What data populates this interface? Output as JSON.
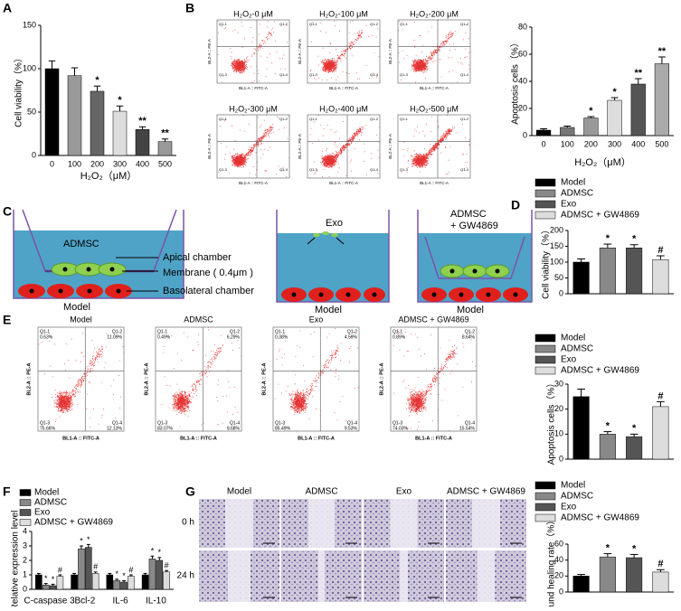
{
  "panel_labels": [
    "A",
    "B",
    "C",
    "D",
    "E",
    "F",
    "G"
  ],
  "chart_data": [
    {
      "type": "bar",
      "categories": [
        "0",
        "100",
        "200",
        "300",
        "400",
        "500"
      ],
      "values": [
        100,
        92,
        74,
        51,
        30,
        16
      ],
      "errors": [
        9,
        9,
        6,
        6,
        3,
        3
      ],
      "markers": [
        null,
        null,
        "*",
        "*",
        "**",
        "**"
      ],
      "colors": [
        "#000000",
        "#999999",
        "#666666",
        "#dddddd",
        "#444444",
        "#999999"
      ],
      "ylim": [
        0,
        150
      ],
      "yticks": [
        0,
        50,
        100,
        150
      ],
      "y_label": "Cell viability（%）",
      "x_label": "H₂O₂（μM）",
      "legend": false
    },
    {
      "type": "bar",
      "categories": [
        "0",
        "100",
        "200",
        "300",
        "400",
        "500"
      ],
      "values": [
        4,
        6,
        13,
        26,
        38,
        53
      ],
      "errors": [
        1,
        1,
        1,
        2,
        4,
        5
      ],
      "markers": [
        null,
        null,
        "*",
        "*",
        "**",
        "**"
      ],
      "colors": [
        "#000000",
        "#777777",
        "#999999",
        "#dddddd",
        "#555555",
        "#aaaaaa"
      ],
      "ylim": [
        0,
        80
      ],
      "yticks": [
        0,
        20,
        40,
        60,
        80
      ],
      "y_label": "Apoptosis cells（%）",
      "x_label": "H₂O₂（μM）",
      "legend": false
    },
    {
      "type": "bar",
      "categories": [
        "Model",
        "ADMSC",
        "Exo",
        "ADMSC + GW4869"
      ],
      "values": [
        100,
        145,
        145,
        108
      ],
      "errors": [
        10,
        12,
        10,
        12
      ],
      "markers": [
        null,
        "*",
        "*",
        "#"
      ],
      "colors": [
        "#000000",
        "#888888",
        "#555555",
        "#dddddd"
      ],
      "ylim": [
        0,
        200
      ],
      "yticks": [
        0,
        50,
        100,
        150,
        200
      ],
      "y_label": "Cell viability（%）",
      "legend": true
    },
    {
      "type": "bar",
      "categories": [
        "Model",
        "ADMSC",
        "Exo",
        "ADMSC + GW4869"
      ],
      "values": [
        25,
        10,
        9,
        21
      ],
      "errors": [
        3,
        1,
        1,
        2
      ],
      "markers": [
        null,
        "*",
        "*",
        "#"
      ],
      "colors": [
        "#000000",
        "#888888",
        "#555555",
        "#dddddd"
      ],
      "ylim": [
        0,
        30
      ],
      "yticks": [
        0,
        10,
        20,
        30
      ],
      "y_label": "Apoptosis cells（%）",
      "legend": true
    },
    {
      "type": "grouped",
      "categories": [
        "C-caspase 3",
        "Bcl-2",
        "IL-6",
        "IL-10"
      ],
      "series": [
        {
          "name": "Model",
          "color": "#000000",
          "values": [
            1,
            1,
            1,
            1
          ],
          "errors": [
            0.1,
            0.1,
            0.1,
            0.1
          ],
          "markers": [
            null,
            null,
            null,
            null
          ]
        },
        {
          "name": "ADMSC",
          "color": "#888888",
          "values": [
            0.3,
            2.8,
            0.6,
            2.1
          ],
          "errors": [
            0.1,
            0.2,
            0.1,
            0.2
          ],
          "markers": [
            "*",
            "*",
            "*",
            "*"
          ]
        },
        {
          "name": "Exo",
          "color": "#555555",
          "values": [
            0.25,
            2.9,
            0.5,
            2.0
          ],
          "errors": [
            0.1,
            0.2,
            0.1,
            0.2
          ],
          "markers": [
            "*",
            "*",
            "*",
            "*"
          ]
        },
        {
          "name": "ADMSC + GW4869",
          "color": "#dddddd",
          "values": [
            0.9,
            1.1,
            0.9,
            1.2
          ],
          "errors": [
            0.1,
            0.1,
            0.1,
            0.1
          ],
          "markers": [
            "#",
            "#",
            "#",
            "#"
          ]
        }
      ],
      "ylim": [
        0,
        4
      ],
      "yticks": [
        0,
        1,
        2,
        3,
        4
      ],
      "y_label": "Relative expression level",
      "legend": true
    },
    {
      "type": "bar",
      "categories": [
        "Model",
        "ADMSC",
        "Exo",
        "ADMSC + GW4869"
      ],
      "values": [
        20,
        44,
        43,
        25
      ],
      "errors": [
        2,
        4,
        4,
        3
      ],
      "markers": [
        null,
        "*",
        "*",
        "#"
      ],
      "colors": [
        "#000000",
        "#888888",
        "#555555",
        "#dddddd"
      ],
      "ylim": [
        0,
        60
      ],
      "yticks": [
        0,
        20,
        40,
        60
      ],
      "y_label": "Wound healing rate（%）",
      "legend": true
    }
  ],
  "flow_b": {
    "x_label": "BL1-A :: FITC-A",
    "y_label": "BL2-A :: PE-A",
    "quadrant_names": [
      "Q1-1",
      "Q1-2",
      "Q1-3",
      "Q1-4"
    ],
    "plots": [
      {
        "title": "H₂O₂-0 μM"
      },
      {
        "title": "H₂O₂-100 μM"
      },
      {
        "title": "H₂O₂-200 μM"
      },
      {
        "title": "H₂O₂-300 μM"
      },
      {
        "title": "H₂O₂-400 μM"
      },
      {
        "title": "H₂O₂-500 μM"
      }
    ]
  },
  "diagram": {
    "left_cell": "ADMSC",
    "apical": "Apical chamber",
    "membrane": "Membrane ( 0.4μm )",
    "basolateral": "Basolateral chamber",
    "left_model": "Model",
    "exo": "Exo",
    "mid_model": "Model",
    "right_cell_1": "ADMSC",
    "right_cell_2": "+ GW4869",
    "right_model": "Model"
  },
  "flow_e": {
    "x_label": "BL1-A :: FITC-A",
    "y_label": "BL2-A :: PE-A",
    "quadrant_names": [
      "Q1-1",
      "Q1-2",
      "Q1-3",
      "Q1-4"
    ],
    "plots": [
      {
        "title": "Model",
        "quadrants": [
          "0.63%",
          "11.09%",
          "75.66%",
          "12.13%"
        ]
      },
      {
        "title": "ADMSC",
        "quadrants": [
          "0.49%",
          "6.29%",
          "83.07%",
          "9.68%"
        ]
      },
      {
        "title": "Exo",
        "quadrants": [
          "0.38%",
          "4.59%",
          "85.49%",
          "9.53%"
        ]
      },
      {
        "title": "ADMSC + GW4869",
        "quadrants": [
          "0.89%",
          "8.64%",
          "74.03%",
          "15.54%"
        ]
      }
    ]
  },
  "wound": {
    "columns": [
      "Model",
      "ADMSC",
      "Exo",
      "ADMSC + GW4869"
    ],
    "rows": [
      "0 h",
      "24 h"
    ]
  }
}
